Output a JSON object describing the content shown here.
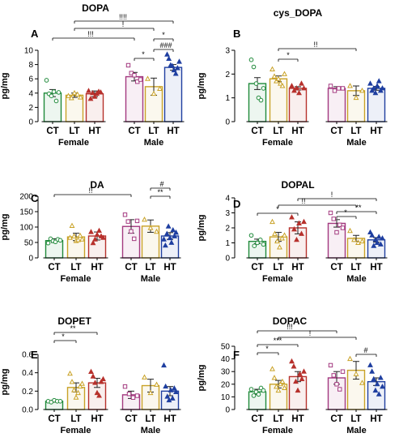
{
  "figure": {
    "group_labels": [
      "Female",
      "Male"
    ],
    "category_labels": [
      "CT",
      "LT",
      "HT"
    ]
  },
  "colors": {
    "CT": "#1f8a3a",
    "LT": "#c9a227",
    "HT_female": "#b7312c",
    "CT_male": "#a3397f",
    "HT_male": "#1f3fa0"
  },
  "chart_data": [
    {
      "letter": "A",
      "title": "DOPA",
      "type": "bar",
      "ylabel": "pg/mg",
      "ylim": [
        0,
        10
      ],
      "yticks": [
        0,
        2,
        4,
        6,
        8,
        10
      ],
      "tick_labels": [
        "0",
        "2",
        "4",
        "6",
        "8",
        "10"
      ],
      "categories": [
        "CT",
        "LT",
        "HT"
      ],
      "series": [
        {
          "name": "Female",
          "values": [
            4.0,
            3.7,
            3.9
          ],
          "errors": [
            0.5,
            0.3,
            0.4
          ],
          "points": [
            [
              5.8,
              3.9,
              3.6,
              4.2,
              2.9,
              4.1
            ],
            [
              3.6,
              3.3,
              4.0,
              3.8,
              3.4
            ],
            [
              4.3,
              3.2,
              4.0,
              3.5,
              3.9,
              4.2,
              4.1
            ]
          ]
        },
        {
          "name": "Male",
          "values": [
            6.3,
            4.9,
            7.6
          ],
          "errors": [
            0.6,
            1.2,
            0.4
          ],
          "points": [
            [
              7.9,
              6.8,
              6.5,
              5.6,
              5.9
            ],
            [
              6.0,
              3.9,
              4.6
            ],
            [
              9.4,
              8.8,
              7.9,
              7.8,
              7.2,
              6.7,
              7.5,
              8.4
            ]
          ]
        }
      ],
      "annotations": [
        "!!!!",
        "!",
        "!!!",
        "*",
        "###",
        "*"
      ]
    },
    {
      "letter": "B",
      "title": "cys_DOPA",
      "type": "bar",
      "ylabel": "pg/mg",
      "ylim": [
        0,
        3
      ],
      "yticks": [
        0,
        1,
        2,
        3
      ],
      "tick_labels": [
        "0",
        "1",
        "2",
        "3"
      ],
      "categories": [
        "CT",
        "LT",
        "HT"
      ],
      "series": [
        {
          "name": "Female",
          "values": [
            1.6,
            1.8,
            1.4
          ],
          "errors": [
            0.25,
            0.12,
            0.07
          ],
          "points": [
            [
              2.6,
              2.3,
              1.6,
              1.0,
              0.9,
              1.4
            ],
            [
              2.2,
              1.9,
              1.7,
              1.8,
              1.6,
              1.5,
              2.0
            ],
            [
              1.5,
              1.3,
              1.4,
              1.2,
              1.6,
              1.4
            ]
          ]
        },
        {
          "name": "Male",
          "values": [
            1.4,
            1.3,
            1.4
          ],
          "errors": [
            0.07,
            0.2,
            0.08
          ],
          "points": [
            [
              1.5,
              1.3,
              1.4,
              1.4
            ],
            [
              1.5,
              1.0,
              1.3
            ],
            [
              1.6,
              1.3,
              1.4,
              1.2,
              1.5,
              1.7,
              1.3,
              1.4
            ]
          ]
        }
      ],
      "annotations": [
        "!!",
        "*"
      ]
    },
    {
      "letter": "C",
      "title": "DA",
      "type": "bar",
      "ylabel": "pg/mg",
      "ylim": [
        0,
        200
      ],
      "yticks": [
        0,
        50,
        100,
        150,
        200
      ],
      "tick_labels": [
        "0",
        "50",
        "100",
        "150",
        "200"
      ],
      "categories": [
        "CT",
        "LT",
        "HT"
      ],
      "series": [
        {
          "name": "Female",
          "values": [
            56,
            68,
            71
          ],
          "errors": [
            6,
            12,
            13
          ],
          "points": [
            [
              48,
              62,
              55,
              52,
              60,
              57
            ],
            [
              65,
              104,
              70,
              55,
              58,
              72,
              60
            ],
            [
              84,
              48,
              60,
              75,
              88,
              70,
              65
            ]
          ]
        },
        {
          "name": "Male",
          "values": [
            102,
            103,
            71
          ],
          "errors": [
            22,
            20,
            11
          ],
          "points": [
            [
              140,
              118,
              86,
              62,
              120
            ],
            [
              124,
              97,
              85
            ],
            [
              60,
              40,
              78,
              102,
              64,
              49,
              90,
              70,
              82
            ]
          ]
        }
      ],
      "annotations": [
        "!!",
        "**",
        "#"
      ]
    },
    {
      "letter": "D",
      "title": "DOPAL",
      "type": "bar",
      "ylabel": "pg/mg",
      "ylim": [
        0,
        4
      ],
      "yticks": [
        0,
        1,
        2,
        3,
        4
      ],
      "tick_labels": [
        "0",
        "1",
        "2",
        "3",
        "4"
      ],
      "categories": [
        "CT",
        "LT",
        "HT"
      ],
      "series": [
        {
          "name": "Female",
          "values": [
            1.1,
            1.4,
            2.0
          ],
          "errors": [
            0.15,
            0.3,
            0.4
          ],
          "points": [
            [
              1.5,
              0.8,
              1.0,
              1.2,
              0.9
            ],
            [
              2.4,
              1.6,
              1.1,
              0.7,
              1.3,
              1.5
            ],
            [
              2.7,
              1.9,
              1.2,
              2.3,
              1.6,
              2.4
            ]
          ]
        },
        {
          "name": "Male",
          "values": [
            2.3,
            1.3,
            1.2
          ],
          "errors": [
            0.25,
            0.2,
            0.15
          ],
          "points": [
            [
              3.0,
              2.6,
              1.7,
              2.2,
              2.0
            ],
            [
              1.8,
              1.2,
              1.0,
              1.1
            ],
            [
              1.7,
              1.5,
              0.8,
              1.2,
              1.0,
              1.4,
              0.9,
              1.3
            ]
          ]
        }
      ],
      "annotations": [
        "!",
        "!!",
        "*",
        "*",
        "**"
      ]
    },
    {
      "letter": "E",
      "title": "DOPET",
      "type": "bar",
      "ylabel": "pg/mg",
      "ylim": [
        0,
        0.6
      ],
      "yticks": [
        0,
        0.2,
        0.4,
        0.6
      ],
      "tick_labels": [
        "0.0",
        "0.2",
        "0.4",
        "0.6"
      ],
      "categories": [
        "CT",
        "LT",
        "HT"
      ],
      "series": [
        {
          "name": "Female",
          "values": [
            0.09,
            0.24,
            0.29
          ],
          "errors": [
            0.01,
            0.05,
            0.05
          ],
          "points": [
            [
              0.09,
              0.08,
              0.1,
              0.09,
              0.09
            ],
            [
              0.39,
              0.3,
              0.21,
              0.13,
              0.18,
              0.25,
              0.28
            ],
            [
              0.41,
              0.36,
              0.29,
              0.18,
              0.15,
              0.3,
              0.33
            ]
          ]
        },
        {
          "name": "Male",
          "values": [
            0.16,
            0.26,
            0.2
          ],
          "errors": [
            0.04,
            0.07,
            0.05
          ],
          "points": [
            [
              0.25,
              0.17,
              0.13,
              0.15
            ],
            [
              0.35,
              0.18,
              0.27
            ],
            [
              0.48,
              0.25,
              0.14,
              0.1,
              0.21,
              0.12,
              0.23,
              0.19
            ]
          ]
        }
      ],
      "annotations": [
        "*",
        "**"
      ]
    },
    {
      "letter": "F",
      "title": "DOPAC",
      "type": "bar",
      "ylabel": "pg/mg",
      "ylim": [
        0,
        50
      ],
      "yticks": [
        0,
        10,
        20,
        30,
        40,
        50
      ],
      "tick_labels": [
        "0",
        "10",
        "20",
        "30",
        "40",
        "50"
      ],
      "categories": [
        "CT",
        "LT",
        "HT"
      ],
      "series": [
        {
          "name": "Female",
          "values": [
            14,
            20,
            26
          ],
          "errors": [
            2,
            3,
            4
          ],
          "points": [
            [
              16,
              11,
              14,
              12,
              17,
              15
            ],
            [
              32,
              25,
              18,
              15,
              20,
              22,
              17
            ],
            [
              38,
              34,
              22,
              15,
              28,
              24,
              30
            ]
          ]
        },
        {
          "name": "Male",
          "values": [
            25,
            31,
            22
          ],
          "errors": [
            5,
            7,
            3
          ],
          "points": [
            [
              35,
              27,
              20,
              16,
              30
            ],
            [
              40,
              28,
              21
            ],
            [
              35,
              30,
              24,
              15,
              20,
              12,
              25,
              18
            ]
          ]
        }
      ],
      "annotations": [
        "!!!",
        "!",
        "*",
        "***",
        "#"
      ]
    }
  ]
}
